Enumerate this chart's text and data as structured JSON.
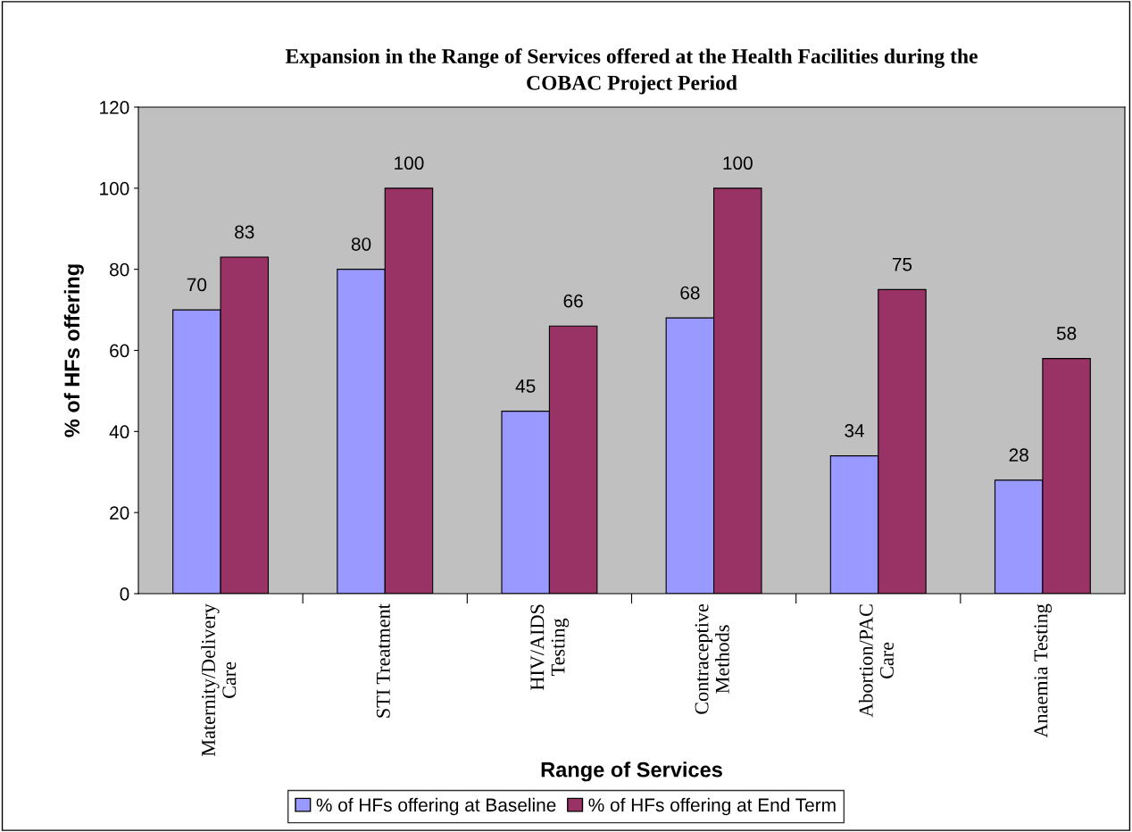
{
  "chart_data": {
    "type": "bar",
    "title": "Expansion in the Range of Services offered at the Health Facilities during the\nCOBAC Project Period",
    "xlabel": "Range of Services",
    "ylabel": "% of HFs offering",
    "categories": [
      "Maternity/Delivery\nCare",
      "STI Treatment",
      "HIV/AIDS\nTesting",
      "Contraceptive\nMethods",
      "Abortion/PAC\nCare",
      "Anaemia Testing"
    ],
    "series": [
      {
        "name": "% of HFs offering at Baseline",
        "color": "#9999ff",
        "values": [
          70,
          80,
          45,
          68,
          34,
          28
        ]
      },
      {
        "name": "% of HFs offering at End Term",
        "color": "#993366",
        "values": [
          83,
          100,
          66,
          100,
          75,
          58
        ]
      }
    ],
    "ylim": [
      0,
      120
    ],
    "yticks": [
      0,
      20,
      40,
      60,
      80,
      100,
      120
    ],
    "data_labels": true,
    "grid": false,
    "legend": "bottom"
  }
}
